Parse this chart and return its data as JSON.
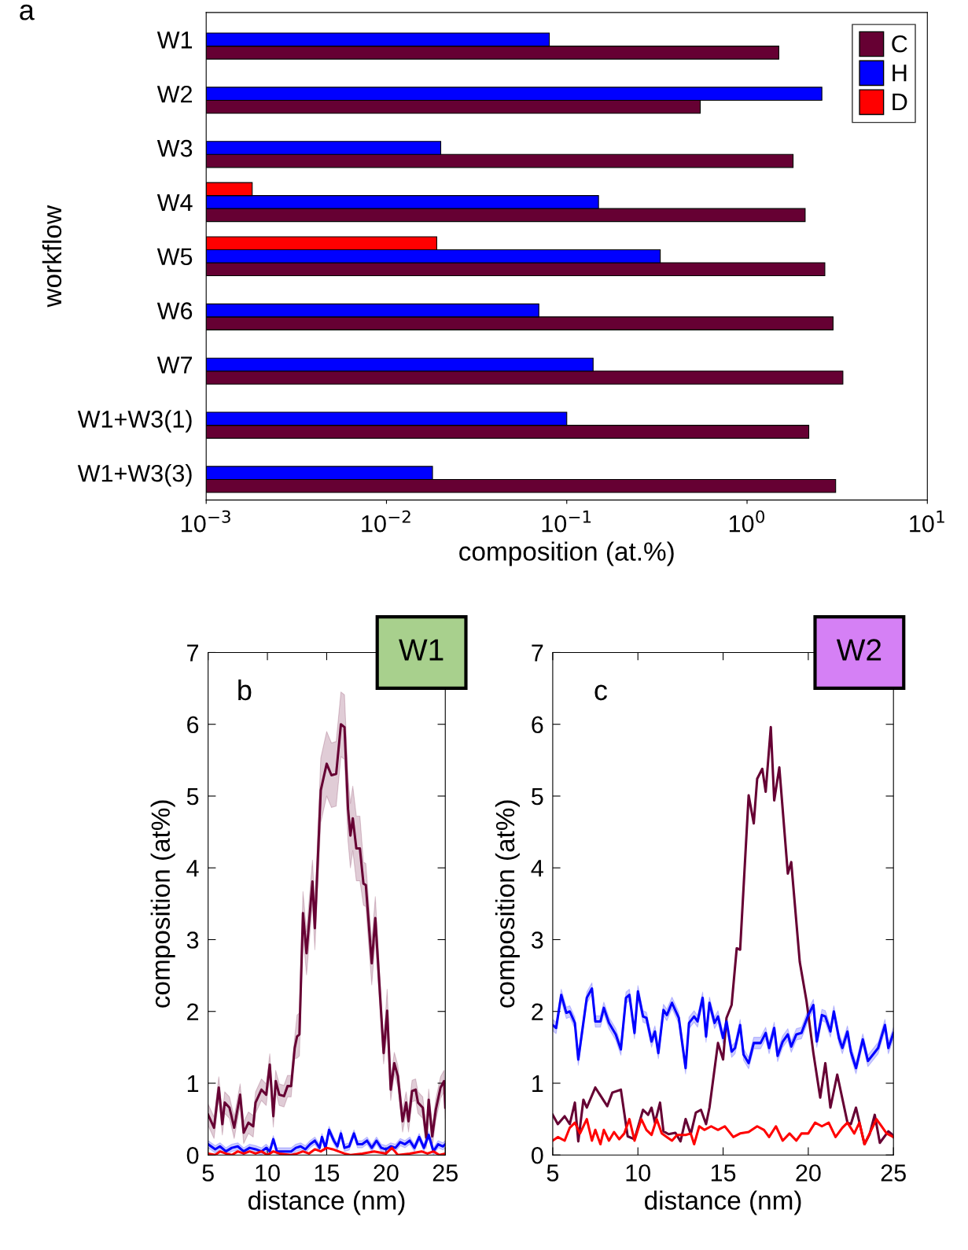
{
  "chart_data": [
    {
      "type": "bar",
      "orientation": "horizontal",
      "log": "x",
      "xlabel": "composition (at.%)",
      "ylabel": "workflow",
      "legend": "top right",
      "annotations": [
        "a"
      ],
      "categories": [
        "W1",
        "W2",
        "W3",
        "W4",
        "W5",
        "W6",
        "W7",
        "W1+W3(1)",
        "W1+W3(3)"
      ],
      "xlim": [
        0.001,
        10
      ],
      "xticks": [
        {
          "value": 0.001,
          "label": "10$^{−3}$"
        },
        {
          "value": 0.01,
          "label": "10$^{−2}$"
        },
        {
          "value": 0.1,
          "label": "10$^{−1}$"
        },
        {
          "value": 1,
          "label": "10$^{0}$"
        },
        {
          "value": 10,
          "label": "10$^{1}$"
        }
      ],
      "series": [
        {
          "name": "C",
          "color": "#660033",
          "values": [
            1.5,
            0.55,
            1.8,
            2.1,
            2.7,
            3.0,
            3.4,
            2.2,
            3.1
          ]
        },
        {
          "name": "H",
          "color": "#0000ff",
          "values": [
            0.08,
            2.6,
            0.02,
            0.15,
            0.33,
            0.07,
            0.14,
            0.1,
            0.018
          ]
        },
        {
          "name": "D",
          "color": "#ff0000",
          "values": [
            null,
            null,
            null,
            0.0018,
            0.019,
            null,
            null,
            null,
            null
          ]
        }
      ]
    },
    {
      "type": "line",
      "xlabel": "distance (nm)",
      "ylabel": "composition (at%)",
      "annotations": [
        "b",
        "W1"
      ],
      "xlim": [
        5,
        25
      ],
      "ylim": [
        0,
        7
      ],
      "xticks": [
        5,
        10,
        15,
        20,
        25
      ],
      "yticks": [
        0,
        1,
        2,
        3,
        4,
        5,
        6,
        7
      ],
      "series": [
        {
          "color": "#660033",
          "x": [
            5.0,
            5.5,
            5.9,
            6.2,
            6.4,
            6.8,
            7.2,
            7.7,
            8.0,
            8.4,
            8.8,
            9.0,
            9.5,
            9.9,
            10.2,
            10.5,
            10.7,
            11.0,
            11.4,
            11.7,
            12.0,
            12.3,
            12.5,
            12.7,
            13.0,
            13.3,
            13.8,
            14.0,
            14.5,
            15.0,
            15.4,
            15.8,
            16.2,
            16.5,
            16.8,
            17.0,
            17.2,
            17.5,
            17.8,
            18.1,
            18.3,
            18.8,
            19.1,
            19.8,
            20.1,
            20.4,
            20.7,
            21.0,
            21.4,
            21.7,
            21.9,
            22.2,
            22.5,
            22.7,
            23.1,
            23.4,
            23.6,
            23.9,
            24.2,
            24.6,
            24.9,
            25
          ],
          "values": [
            0.56,
            0.38,
            0.94,
            0.43,
            0.73,
            0.66,
            0.38,
            0.84,
            0.31,
            0.45,
            0.4,
            0.73,
            0.91,
            0.84,
            1.26,
            0.54,
            1.03,
            0.84,
            0.82,
            0.96,
            0.96,
            1.49,
            1.65,
            1.68,
            3.37,
            2.81,
            3.81,
            3.16,
            5.08,
            5.45,
            5.29,
            5.31,
            6.0,
            5.96,
            4.82,
            4.45,
            4.69,
            4.27,
            4.27,
            3.78,
            3.76,
            2.67,
            3.3,
            1.42,
            2.01,
            0.91,
            1.28,
            1.1,
            0.47,
            0.73,
            0.47,
            0.89,
            0.91,
            0.73,
            0.66,
            0.24,
            0.77,
            0.26,
            0.63,
            0.94,
            1.03,
            0.66
          ],
          "lower": [
            0.41,
            0.23,
            0.79,
            0.28,
            0.58,
            0.51,
            0.23,
            0.69,
            0.16,
            0.3,
            0.25,
            0.58,
            0.76,
            0.69,
            1.11,
            0.39,
            0.88,
            0.69,
            0.67,
            0.81,
            0.81,
            1.34,
            1.35,
            1.38,
            3.07,
            2.51,
            3.51,
            2.86,
            4.63,
            5.0,
            4.84,
            4.86,
            5.55,
            5.51,
            4.37,
            4.0,
            4.24,
            3.82,
            3.82,
            3.48,
            3.46,
            2.37,
            3.0,
            1.27,
            1.71,
            0.76,
            1.13,
            0.95,
            0.32,
            0.58,
            0.32,
            0.74,
            0.76,
            0.58,
            0.51,
            0.09,
            0.62,
            0.11,
            0.48,
            0.79,
            0.88,
            0.51
          ],
          "upper": [
            0.71,
            0.53,
            1.09,
            0.58,
            0.88,
            0.81,
            0.53,
            0.99,
            0.46,
            0.6,
            0.55,
            0.88,
            1.06,
            0.99,
            1.41,
            0.69,
            1.18,
            0.99,
            0.97,
            1.11,
            1.11,
            1.64,
            1.95,
            1.98,
            3.67,
            3.11,
            4.11,
            3.46,
            5.53,
            5.9,
            5.74,
            5.76,
            6.45,
            6.41,
            5.27,
            4.9,
            5.14,
            4.72,
            4.72,
            4.08,
            4.06,
            2.97,
            3.6,
            1.57,
            2.31,
            1.06,
            1.43,
            1.25,
            0.62,
            0.88,
            0.62,
            1.04,
            1.06,
            0.88,
            0.81,
            0.39,
            0.92,
            0.41,
            0.78,
            1.09,
            1.18,
            0.81
          ]
        },
        {
          "color": "#0000ff",
          "x": [
            5.0,
            5.6,
            6.0,
            6.5,
            7.0,
            7.5,
            8.0,
            8.5,
            9.0,
            9.5,
            9.9,
            10.2,
            10.5,
            10.8,
            11.2,
            11.6,
            12.0,
            12.4,
            12.8,
            13.2,
            13.6,
            14.0,
            14.4,
            14.6,
            14.9,
            15.2,
            15.6,
            15.9,
            16.2,
            16.5,
            16.9,
            17.3,
            17.6,
            18.0,
            18.4,
            18.8,
            19.2,
            19.6,
            20.0,
            20.4,
            20.8,
            21.2,
            21.6,
            22.0,
            22.4,
            22.8,
            23.2,
            23.6,
            24.0,
            24.4,
            24.8,
            25
          ],
          "values": [
            0.15,
            0.08,
            0.12,
            0.05,
            0.1,
            0.12,
            0.05,
            0.1,
            0.08,
            0.05,
            0.1,
            0.05,
            0.22,
            0.05,
            0.05,
            0.05,
            0.05,
            0.1,
            0.12,
            0.08,
            0.15,
            0.2,
            0.1,
            0.25,
            0.1,
            0.35,
            0.2,
            0.12,
            0.3,
            0.1,
            0.12,
            0.3,
            0.15,
            0.15,
            0.2,
            0.1,
            0.2,
            0.1,
            0.08,
            0.12,
            0.1,
            0.18,
            0.15,
            0.2,
            0.1,
            0.25,
            0.1,
            0.28,
            0.05,
            0.15,
            0.12,
            0.15
          ],
          "lower": [
            0.1,
            0.03,
            0.07,
            0.0,
            0.05,
            0.07,
            0.0,
            0.05,
            0.03,
            0.0,
            0.05,
            0.0,
            0.17,
            0.0,
            0.0,
            0.0,
            0.0,
            0.05,
            0.07,
            0.03,
            0.1,
            0.15,
            0.05,
            0.2,
            0.05,
            0.3,
            0.15,
            0.07,
            0.25,
            0.05,
            0.07,
            0.25,
            0.1,
            0.1,
            0.15,
            0.05,
            0.15,
            0.05,
            0.03,
            0.07,
            0.05,
            0.13,
            0.1,
            0.15,
            0.05,
            0.2,
            0.05,
            0.23,
            0.0,
            0.1,
            0.07,
            0.1
          ],
          "upper": [
            0.2,
            0.13,
            0.17,
            0.1,
            0.15,
            0.17,
            0.1,
            0.15,
            0.13,
            0.1,
            0.15,
            0.1,
            0.27,
            0.1,
            0.1,
            0.1,
            0.1,
            0.15,
            0.17,
            0.13,
            0.2,
            0.25,
            0.15,
            0.3,
            0.15,
            0.4,
            0.25,
            0.17,
            0.35,
            0.15,
            0.17,
            0.35,
            0.2,
            0.2,
            0.25,
            0.15,
            0.25,
            0.15,
            0.13,
            0.17,
            0.15,
            0.23,
            0.2,
            0.25,
            0.15,
            0.3,
            0.15,
            0.33,
            0.1,
            0.2,
            0.17,
            0.2
          ]
        },
        {
          "color": "#ff0000",
          "x": [
            5.0,
            5.6,
            6.0,
            6.5,
            7.0,
            7.5,
            8.0,
            8.5,
            9.0,
            9.5,
            10.0,
            10.5,
            11.0,
            12.0,
            12.5,
            13.0,
            13.5,
            14.0,
            14.5,
            15.0,
            15.5,
            16.0,
            16.5,
            17.0,
            18.0,
            19.0,
            20.0,
            20.5,
            21.0,
            22.0,
            23.0,
            23.5,
            24.0,
            24.5,
            25
          ],
          "values": [
            0.02,
            0,
            0.05,
            0.02,
            0,
            0.05,
            0.02,
            0.05,
            0.02,
            0.05,
            0,
            0.05,
            0.02,
            0,
            0.02,
            0.05,
            0.02,
            0.08,
            0.05,
            0.1,
            0.08,
            0.05,
            0.02,
            0,
            0.02,
            0.05,
            0.02,
            0.1,
            0,
            0.02,
            0.05,
            0.02,
            0.05,
            0,
            0.02
          ]
        }
      ]
    },
    {
      "type": "line",
      "xlabel": "distance (nm)",
      "ylabel": "composition (at%)",
      "annotations": [
        "c",
        "W2"
      ],
      "xlim": [
        5,
        25
      ],
      "ylim": [
        0,
        7
      ],
      "xticks": [
        5,
        10,
        15,
        20,
        25
      ],
      "yticks": [
        0,
        1,
        2,
        3,
        4,
        5,
        6,
        7
      ],
      "series": [
        {
          "color": "#660033",
          "x": [
            5.0,
            5.3,
            5.7,
            6.0,
            6.3,
            6.5,
            6.8,
            7.0,
            7.5,
            8.2,
            8.5,
            9.0,
            9.4,
            9.8,
            10.3,
            10.6,
            10.8,
            11.0,
            11.3,
            11.5,
            11.8,
            12.2,
            12.5,
            12.8,
            13.1,
            13.4,
            13.7,
            14.0,
            14.2,
            14.7,
            15.0,
            15.2,
            15.5,
            15.8,
            16.0,
            16.5,
            16.8,
            17.0,
            17.3,
            17.5,
            17.8,
            18.0,
            18.3,
            18.8,
            19.0,
            19.5,
            19.9,
            20.3,
            20.7,
            21.0,
            21.3,
            21.7,
            22.3,
            22.5,
            22.8,
            23.3,
            23.6,
            23.9,
            24.2,
            24.7,
            24.9,
            25
          ],
          "values": [
            0.56,
            0.43,
            0.54,
            0.43,
            0.73,
            0.19,
            0.77,
            0.66,
            0.94,
            0.68,
            0.87,
            0.91,
            0.26,
            0.22,
            0.63,
            0.56,
            0.66,
            0.45,
            0.73,
            0.33,
            0.29,
            0.31,
            0.19,
            0.5,
            0.29,
            0.59,
            0.63,
            0.43,
            0.66,
            1.56,
            1.33,
            1.91,
            2.09,
            2.88,
            2.86,
            5.01,
            4.62,
            5.24,
            5.38,
            5.06,
            5.96,
            4.94,
            5.4,
            3.92,
            4.08,
            2.69,
            2.14,
            1.42,
            0.8,
            1.28,
            0.66,
            1.12,
            0.45,
            0.43,
            0.66,
            0.15,
            0.29,
            0.56,
            0.17,
            0.33,
            0.29,
            0.25
          ]
        },
        {
          "color": "#0000ff",
          "x": [
            5.0,
            5.2,
            5.5,
            5.8,
            6.0,
            6.3,
            6.5,
            7.0,
            7.3,
            7.5,
            7.8,
            8.0,
            8.3,
            8.7,
            9.0,
            9.3,
            9.5,
            9.8,
            10.0,
            10.3,
            10.5,
            10.8,
            11.0,
            11.2,
            11.5,
            11.7,
            12.0,
            12.4,
            12.8,
            13.0,
            13.3,
            13.5,
            13.8,
            14.0,
            14.2,
            14.5,
            14.7,
            15.0,
            15.2,
            15.5,
            15.7,
            16.0,
            16.2,
            16.5,
            16.8,
            17.2,
            17.5,
            17.7,
            18.0,
            18.2,
            18.5,
            18.8,
            19.0,
            19.3,
            19.6,
            20.0,
            20.3,
            20.5,
            20.8,
            21.0,
            21.3,
            21.5,
            21.8,
            22.0,
            22.3,
            22.5,
            22.8,
            23.2,
            23.5,
            24.1,
            24.5,
            24.7,
            25
          ],
          "values": [
            1.81,
            1.77,
            2.23,
            1.98,
            2.0,
            1.84,
            1.33,
            2.19,
            2.32,
            1.86,
            1.86,
            2.05,
            1.84,
            1.68,
            1.47,
            2.19,
            2.23,
            1.7,
            2.28,
            1.93,
            1.91,
            1.58,
            1.72,
            1.42,
            2.02,
            1.95,
            2.12,
            1.91,
            1.21,
            1.84,
            1.93,
            1.86,
            2.19,
            1.65,
            2.12,
            1.84,
            1.93,
            1.63,
            1.86,
            1.44,
            1.49,
            1.81,
            1.4,
            1.28,
            1.56,
            1.56,
            1.7,
            1.49,
            1.77,
            1.38,
            1.58,
            1.68,
            1.51,
            1.68,
            1.7,
            1.95,
            2.09,
            1.58,
            1.95,
            1.93,
            1.72,
            2.0,
            1.63,
            1.49,
            1.72,
            1.44,
            1.21,
            1.61,
            1.31,
            1.49,
            1.81,
            1.49,
            1.7
          ],
          "lower": [
            1.73,
            1.69,
            2.15,
            1.9,
            1.92,
            1.76,
            1.25,
            2.11,
            2.24,
            1.78,
            1.78,
            1.97,
            1.76,
            1.6,
            1.39,
            2.11,
            2.15,
            1.62,
            2.2,
            1.85,
            1.83,
            1.5,
            1.64,
            1.34,
            1.94,
            1.87,
            2.04,
            1.83,
            1.13,
            1.76,
            1.85,
            1.78,
            2.11,
            1.57,
            2.04,
            1.76,
            1.85,
            1.55,
            1.78,
            1.36,
            1.41,
            1.73,
            1.32,
            1.2,
            1.48,
            1.48,
            1.62,
            1.41,
            1.69,
            1.3,
            1.5,
            1.6,
            1.43,
            1.6,
            1.62,
            1.87,
            2.01,
            1.5,
            1.87,
            1.85,
            1.64,
            1.92,
            1.55,
            1.41,
            1.64,
            1.36,
            1.13,
            1.53,
            1.23,
            1.41,
            1.73,
            1.41,
            1.62
          ],
          "upper": [
            1.89,
            1.85,
            2.31,
            2.06,
            2.08,
            1.92,
            1.41,
            2.27,
            2.4,
            1.94,
            1.94,
            2.13,
            1.92,
            1.76,
            1.55,
            2.27,
            2.31,
            1.78,
            2.36,
            2.01,
            1.99,
            1.66,
            1.8,
            1.5,
            2.1,
            2.03,
            2.2,
            1.99,
            1.29,
            1.92,
            2.01,
            1.94,
            2.27,
            1.73,
            2.2,
            1.92,
            2.01,
            1.71,
            1.94,
            1.52,
            1.57,
            1.89,
            1.48,
            1.36,
            1.64,
            1.64,
            1.78,
            1.57,
            1.85,
            1.46,
            1.66,
            1.76,
            1.59,
            1.76,
            1.78,
            2.03,
            2.17,
            1.66,
            2.03,
            2.01,
            1.8,
            2.08,
            1.71,
            1.57,
            1.8,
            1.52,
            1.29,
            1.69,
            1.39,
            1.57,
            1.89,
            1.57,
            1.78
          ]
        },
        {
          "color": "#ff0000",
          "x": [
            5.0,
            5.3,
            5.7,
            6.0,
            6.3,
            6.6,
            7.0,
            7.3,
            7.5,
            7.8,
            8.0,
            8.3,
            8.6,
            8.9,
            9.2,
            9.5,
            9.8,
            10.2,
            10.5,
            10.8,
            11.1,
            11.4,
            11.7,
            12.0,
            12.3,
            12.8,
            13.1,
            13.3,
            13.6,
            13.9,
            14.3,
            14.7,
            15.1,
            15.6,
            16.0,
            16.5,
            17.0,
            17.4,
            17.7,
            18.1,
            18.5,
            18.9,
            19.3,
            19.6,
            20.0,
            20.4,
            20.8,
            21.2,
            21.6,
            22.0,
            22.3,
            22.7,
            23.0,
            23.3,
            23.7,
            24.0,
            24.3,
            24.6,
            25
          ],
          "values": [
            0.2,
            0.25,
            0.2,
            0.38,
            0.45,
            0.3,
            0.5,
            0.2,
            0.35,
            0.15,
            0.35,
            0.2,
            0.32,
            0.22,
            0.3,
            0.5,
            0.2,
            0.5,
            0.35,
            0.28,
            0.5,
            0.3,
            0.25,
            0.2,
            0.28,
            0.28,
            0.3,
            0.15,
            0.4,
            0.35,
            0.4,
            0.35,
            0.4,
            0.25,
            0.3,
            0.32,
            0.4,
            0.35,
            0.25,
            0.4,
            0.2,
            0.3,
            0.2,
            0.3,
            0.3,
            0.45,
            0.4,
            0.45,
            0.25,
            0.38,
            0.45,
            0.3,
            0.45,
            0.15,
            0.35,
            0.5,
            0.4,
            0.3,
            0.25
          ]
        }
      ]
    }
  ]
}
